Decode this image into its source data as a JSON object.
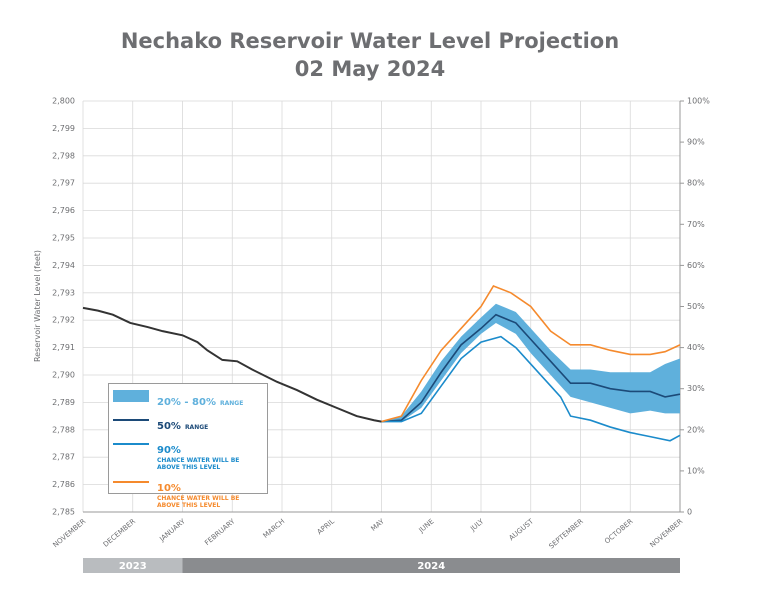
{
  "chart_data": {
    "type": "line",
    "title": "Nechako Reservoir Water Level Projection",
    "subtitle": "02 May 2024",
    "ylabel": "Reservoir Water Level (feet)",
    "xlim": [
      0,
      12
    ],
    "xticks": [
      {
        "value": 0,
        "label": "NOVEMBER"
      },
      {
        "value": 1,
        "label": "DECEMBER"
      },
      {
        "value": 2,
        "label": "JANUARY"
      },
      {
        "value": 3,
        "label": "FEBRUARY"
      },
      {
        "value": 4,
        "label": "MARCH"
      },
      {
        "value": 5,
        "label": "APRIL"
      },
      {
        "value": 6,
        "label": "MAY"
      },
      {
        "value": 7,
        "label": "JUNE"
      },
      {
        "value": 8,
        "label": "JULY"
      },
      {
        "value": 9,
        "label": "AUGUST"
      },
      {
        "value": 10,
        "label": "SEPTEMBER"
      },
      {
        "value": 11,
        "label": "OCTOBER"
      },
      {
        "value": 12,
        "label": "NOVEMBER"
      }
    ],
    "ylim": [
      2785,
      2800
    ],
    "yticks": [
      {
        "value": 2785,
        "label": "2,785"
      },
      {
        "value": 2786,
        "label": "2,786"
      },
      {
        "value": 2787,
        "label": "2,787"
      },
      {
        "value": 2788,
        "label": "2,788"
      },
      {
        "value": 2789,
        "label": "2,789"
      },
      {
        "value": 2790,
        "label": "2,790"
      },
      {
        "value": 2791,
        "label": "2,791"
      },
      {
        "value": 2792,
        "label": "2,792"
      },
      {
        "value": 2793,
        "label": "2,793"
      },
      {
        "value": 2794,
        "label": "2,794"
      },
      {
        "value": 2795,
        "label": "2,795"
      },
      {
        "value": 2796,
        "label": "2,796"
      },
      {
        "value": 2797,
        "label": "2,797"
      },
      {
        "value": 2798,
        "label": "2,798"
      },
      {
        "value": 2799,
        "label": "2,799"
      },
      {
        "value": 2800,
        "label": "2,800"
      }
    ],
    "y2lim": [
      0,
      100
    ],
    "y2ticks": [
      {
        "value": 0,
        "label": "0"
      },
      {
        "value": 10,
        "label": "10%"
      },
      {
        "value": 20,
        "label": "20%"
      },
      {
        "value": 30,
        "label": "30%"
      },
      {
        "value": 40,
        "label": "40%"
      },
      {
        "value": 50,
        "label": "50%"
      },
      {
        "value": 60,
        "label": "60%"
      },
      {
        "value": 70,
        "label": "70%"
      },
      {
        "value": 80,
        "label": "80%"
      },
      {
        "value": 90,
        "label": "90%"
      },
      {
        "value": 100,
        "label": "100%"
      }
    ],
    "grid": true,
    "year_bands": [
      {
        "label": "2023",
        "start": 0,
        "end": 2,
        "color": "#b9bcbf"
      },
      {
        "label": "2024",
        "start": 2,
        "end": 12,
        "color": "#8a8c8f"
      }
    ],
    "history": {
      "color": "#333333",
      "x": [
        0,
        0.3,
        0.6,
        0.95,
        1.3,
        1.6,
        2.0,
        2.3,
        2.5,
        2.8,
        3.1,
        3.4,
        3.9,
        4.3,
        4.7,
        5.1,
        5.5,
        5.85,
        6.0
      ],
      "values": [
        2792.45,
        2792.35,
        2792.2,
        2791.9,
        2791.75,
        2791.6,
        2791.45,
        2791.2,
        2790.9,
        2790.55,
        2790.5,
        2790.2,
        2789.75,
        2789.45,
        2789.1,
        2788.8,
        2788.5,
        2788.35,
        2788.3
      ]
    },
    "band": {
      "name": "20% - 80%",
      "note": "RANGE",
      "color": "#5fb0dc",
      "x": [
        6.0,
        6.4,
        6.8,
        7.2,
        7.6,
        8.0,
        8.3,
        8.7,
        9.0,
        9.4,
        9.8,
        10.2,
        10.6,
        11.0,
        11.4,
        11.7,
        12
      ],
      "low": [
        2788.3,
        2788.3,
        2788.8,
        2789.8,
        2790.8,
        2791.5,
        2791.9,
        2791.5,
        2790.8,
        2790.0,
        2789.2,
        2789.0,
        2788.8,
        2788.6,
        2788.7,
        2788.6,
        2788.6
      ],
      "high": [
        2788.3,
        2788.5,
        2789.4,
        2790.5,
        2791.4,
        2792.1,
        2792.6,
        2792.3,
        2791.7,
        2790.9,
        2790.2,
        2790.2,
        2790.1,
        2790.1,
        2790.1,
        2790.4,
        2790.6
      ]
    },
    "series": [
      {
        "name": "50%",
        "note": "RANGE",
        "color": "#1c4a78",
        "x": [
          6.0,
          6.4,
          6.8,
          7.2,
          7.6,
          8.0,
          8.3,
          8.7,
          9.0,
          9.4,
          9.8,
          10.2,
          10.6,
          11.0,
          11.4,
          11.7,
          12
        ],
        "values": [
          2788.3,
          2788.35,
          2789.0,
          2790.1,
          2791.1,
          2791.7,
          2792.2,
          2791.9,
          2791.3,
          2790.5,
          2789.7,
          2789.7,
          2789.5,
          2789.4,
          2789.4,
          2789.2,
          2789.3
        ]
      },
      {
        "name": "90%",
        "note": "CHANCE WATER WILL BE ABOVE THIS LEVEL",
        "color": "#1b8bcb",
        "x": [
          6.0,
          6.4,
          6.8,
          7.2,
          7.6,
          8.0,
          8.4,
          8.7,
          9.0,
          9.4,
          9.6,
          9.8,
          10.2,
          10.6,
          11.0,
          11.4,
          11.8,
          12
        ],
        "values": [
          2788.3,
          2788.3,
          2788.6,
          2789.6,
          2790.6,
          2791.2,
          2791.4,
          2791.0,
          2790.4,
          2789.6,
          2789.2,
          2788.5,
          2788.35,
          2788.1,
          2787.9,
          2787.75,
          2787.6,
          2787.8
        ]
      },
      {
        "name": "10%",
        "note": "CHANCE WATER WILL BE ABOVE THIS LEVEL",
        "color": "#f58a2d",
        "x": [
          6.0,
          6.4,
          6.8,
          7.2,
          7.6,
          8.0,
          8.25,
          8.6,
          9.0,
          9.4,
          9.8,
          10.2,
          10.6,
          11.0,
          11.4,
          11.7,
          12
        ],
        "values": [
          2788.3,
          2788.5,
          2789.8,
          2790.9,
          2791.7,
          2792.5,
          2793.25,
          2793.0,
          2792.5,
          2791.6,
          2791.1,
          2791.1,
          2790.9,
          2790.75,
          2790.75,
          2790.85,
          2791.1
        ]
      }
    ]
  }
}
